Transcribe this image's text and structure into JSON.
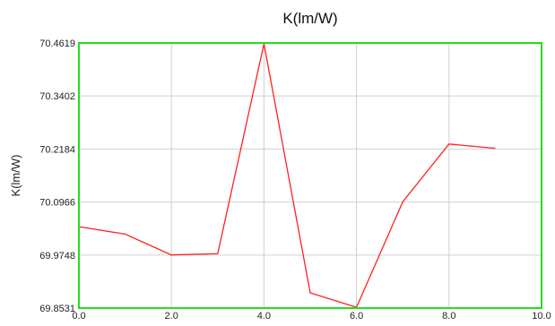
{
  "chart_data": {
    "type": "line",
    "title": "K(lm/W)",
    "xlabel": "",
    "ylabel": "K(lm/W)",
    "xlim": [
      0,
      10
    ],
    "ylim": [
      69.8531,
      70.4619
    ],
    "x_ticks": [
      "0.0",
      "2.0",
      "4.0",
      "6.0",
      "8.0",
      "10.0"
    ],
    "y_ticks": [
      "70.4619",
      "70.3402",
      "70.2184",
      "70.0966",
      "69.9748",
      "69.8531"
    ],
    "grid": true,
    "series": [
      {
        "x": [
          0,
          1,
          2,
          3,
          4,
          5,
          6,
          7,
          8,
          9
        ],
        "values": [
          70.04,
          70.023,
          69.975,
          69.978,
          70.46,
          69.888,
          69.855,
          70.097,
          70.23,
          70.22
        ]
      }
    ]
  },
  "colors": {
    "line": "#ff2020",
    "plot_border": "#22dd22",
    "grid": "#d0d0d0"
  }
}
